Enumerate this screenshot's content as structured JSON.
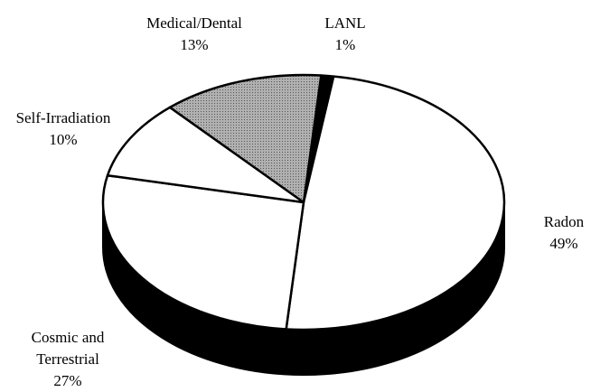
{
  "chart_data": {
    "type": "pie",
    "categories": [
      "LANL",
      "Radon",
      "Cosmic and Terrestrial",
      "Self-Irradiation",
      "Medical/Dental"
    ],
    "values": [
      1,
      49,
      27,
      10,
      13
    ],
    "value_labels": [
      "1%",
      "49%",
      "27%",
      "10%",
      "13%"
    ],
    "colors": [
      "#000000",
      "#ffffff",
      "#ffffff",
      "#ffffff",
      "#9a9a9a"
    ]
  }
}
